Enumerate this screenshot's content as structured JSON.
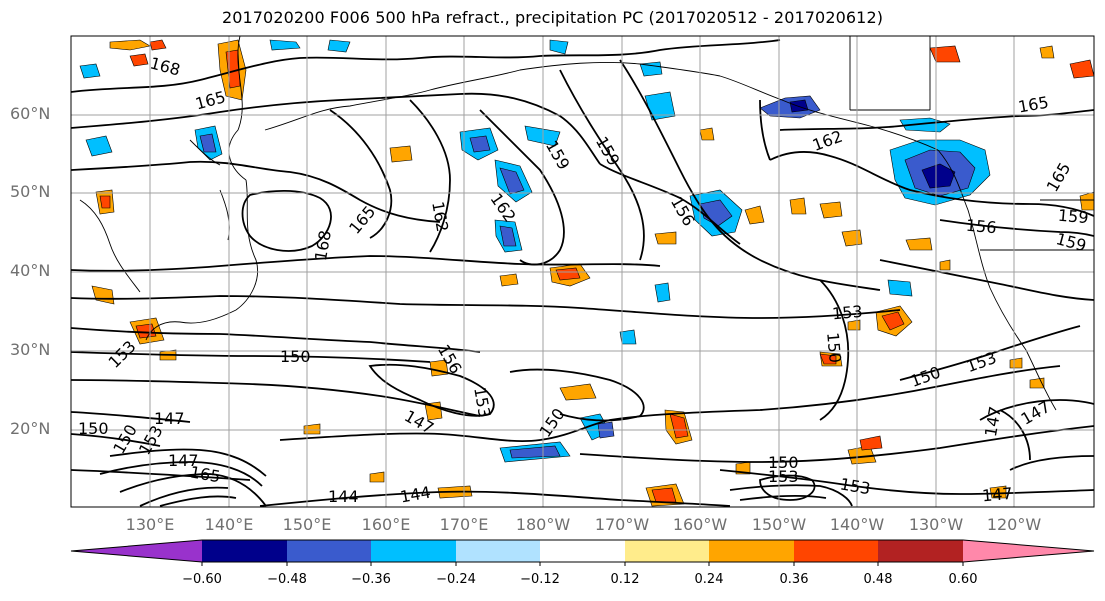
{
  "title": "2017020200 F006 500 hPa refract., precipitation PC (2017020512 - 2017020612)",
  "lat_labels": [
    "60°N",
    "50°N",
    "40°N",
    "30°N",
    "20°N"
  ],
  "lon_labels": [
    "130°E",
    "140°E",
    "150°E",
    "160°E",
    "170°E",
    "180°W",
    "170°W",
    "160°W",
    "150°W",
    "140°W",
    "130°W",
    "120°W"
  ],
  "colorbar": {
    "ticks": [
      "−0.60",
      "−0.48",
      "−0.36",
      "−0.24",
      "−0.12",
      "0.12",
      "0.24",
      "0.36",
      "0.48",
      "0.60"
    ],
    "colors": [
      "#9932cc",
      "#00008b",
      "#3a5bcd",
      "#00bfff",
      "#b0e2ff",
      "#ffffff",
      "#ffec8b",
      "#ffa500",
      "#ff4500",
      "#b22222",
      "#ff88aa"
    ]
  },
  "contour_labels": [
    "168",
    "165",
    "159",
    "159",
    "162",
    "156",
    "162",
    "162",
    "165",
    "168",
    "156",
    "159",
    "159",
    "165",
    "165",
    "153",
    "153",
    "150",
    "156",
    "153",
    "150",
    "150",
    "150",
    "153",
    "147",
    "147",
    "150",
    "150",
    "147",
    "153",
    "165",
    "147",
    "147",
    "144",
    "144",
    "150",
    "153",
    "153",
    "147"
  ]
}
